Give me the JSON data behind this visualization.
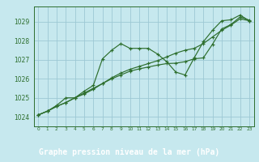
{
  "background_color": "#c6e8ee",
  "plot_bg_color": "#c6e8ee",
  "bottom_bar_color": "#2d6e2d",
  "grid_color": "#9dc8d4",
  "line_color": "#2d6e2d",
  "marker_color": "#2d6e2d",
  "xlabel": "Graphe pression niveau de la mer (hPa)",
  "xlabel_fontsize": 7.0,
  "ylabel_ticks": [
    1024,
    1025,
    1026,
    1027,
    1028,
    1029
  ],
  "xlim": [
    -0.5,
    23.5
  ],
  "ylim": [
    1023.5,
    1029.8
  ],
  "xticks": [
    0,
    1,
    2,
    3,
    4,
    5,
    6,
    7,
    8,
    9,
    10,
    11,
    12,
    13,
    14,
    15,
    16,
    17,
    18,
    19,
    20,
    21,
    22,
    23
  ],
  "series": [
    {
      "x": [
        0,
        1,
        2,
        3,
        4,
        5,
        6,
        7,
        8,
        9,
        10,
        11,
        12,
        13,
        14,
        15,
        16,
        17,
        18,
        19,
        20,
        21,
        22,
        23
      ],
      "y": [
        1024.1,
        1024.3,
        1024.6,
        1025.0,
        1025.0,
        1025.35,
        1025.65,
        1027.05,
        1027.5,
        1027.85,
        1027.6,
        1027.6,
        1027.6,
        1027.3,
        1026.9,
        1026.35,
        1026.2,
        1027.1,
        1027.95,
        1028.55,
        1029.05,
        1029.1,
        1029.35,
        1029.05
      ]
    },
    {
      "x": [
        0,
        1,
        2,
        3,
        4,
        5,
        6,
        7,
        8,
        9,
        10,
        11,
        12,
        13,
        14,
        15,
        16,
        17,
        18,
        19,
        20,
        21,
        22,
        23
      ],
      "y": [
        1024.1,
        1024.3,
        1024.55,
        1024.75,
        1025.0,
        1025.25,
        1025.5,
        1025.75,
        1026.05,
        1026.3,
        1026.5,
        1026.65,
        1026.8,
        1026.95,
        1027.15,
        1027.35,
        1027.5,
        1027.6,
        1027.85,
        1028.2,
        1028.55,
        1028.82,
        1029.15,
        1029.05
      ]
    },
    {
      "x": [
        0,
        1,
        2,
        3,
        4,
        5,
        6,
        7,
        8,
        9,
        10,
        11,
        12,
        13,
        14,
        15,
        16,
        17,
        18,
        19,
        20,
        21,
        22,
        23
      ],
      "y": [
        1024.1,
        1024.3,
        1024.55,
        1024.75,
        1025.0,
        1025.2,
        1025.45,
        1025.75,
        1026.0,
        1026.2,
        1026.4,
        1026.52,
        1026.62,
        1026.72,
        1026.8,
        1026.82,
        1026.9,
        1027.05,
        1027.1,
        1027.82,
        1028.62,
        1028.85,
        1029.25,
        1029.08
      ]
    }
  ]
}
